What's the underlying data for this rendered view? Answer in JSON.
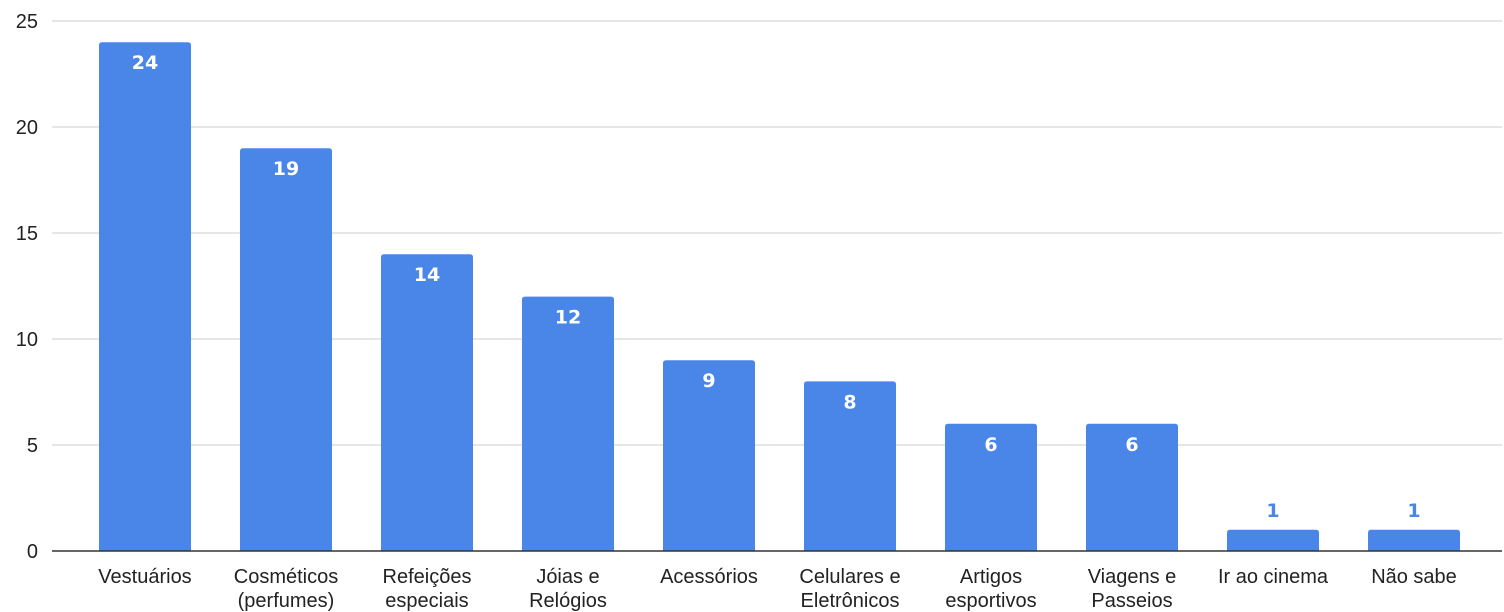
{
  "chart_data": {
    "type": "bar",
    "title": "",
    "xlabel": "",
    "ylabel": "",
    "ylim": [
      0,
      25
    ],
    "yticks": [
      0,
      5,
      10,
      15,
      20,
      25
    ],
    "grid": true,
    "legend": "none",
    "bar_color": "#4a86e8",
    "inside_label_color": "#ffffff",
    "outside_label_color": "#4a86e8",
    "categories": [
      [
        "Vestuários"
      ],
      [
        "Cosméticos",
        "(perfumes)"
      ],
      [
        "Refeições",
        "especiais"
      ],
      [
        "Jóias e",
        "Relógios"
      ],
      [
        "Acessórios"
      ],
      [
        "Celulares e",
        "Eletrônicos"
      ],
      [
        "Artigos",
        "esportivos"
      ],
      [
        "Viagens e",
        "Passeios"
      ],
      [
        "Ir ao cinema"
      ],
      [
        "Não sabe"
      ]
    ],
    "values": [
      24,
      19,
      14,
      12,
      9,
      8,
      6,
      6,
      1,
      1
    ]
  }
}
